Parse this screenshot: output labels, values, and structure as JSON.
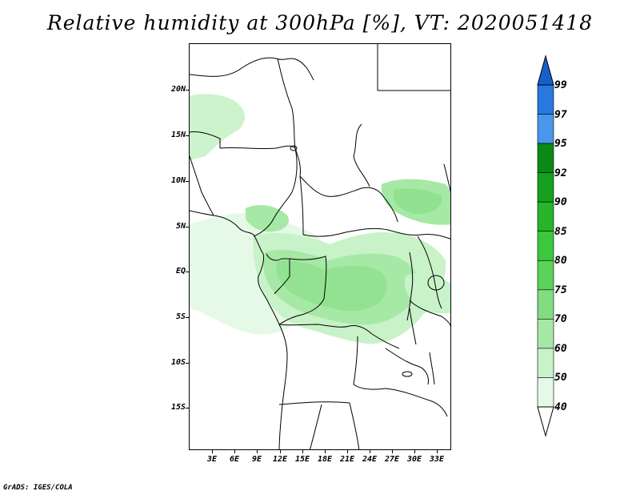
{
  "title": "Relative humidity at 300hPa [%], VT: 2020051418",
  "credit": "GrADS: IGES/COLA",
  "map": {
    "latitude_labels": [
      "20N",
      "15N",
      "10N",
      "5N",
      "EQ",
      "5S",
      "10S",
      "15S"
    ],
    "longitude_labels": [
      "3E",
      "6E",
      "9E",
      "12E",
      "15E",
      "18E",
      "21E",
      "24E",
      "27E",
      "30E",
      "33E"
    ]
  },
  "legend": {
    "labels": [
      "99",
      "97",
      "95",
      "92",
      "90",
      "85",
      "80",
      "75",
      "70",
      "60",
      "50",
      "40"
    ],
    "colors": [
      "#1560cc",
      "#2878e0",
      "#4a96ec",
      "#0a8a14",
      "#14a01e",
      "#28b428",
      "#3cc83c",
      "#5ad25a",
      "#82dc82",
      "#a6e8a6",
      "#c8f2c8",
      "#e6f8e6"
    ]
  },
  "chart_data": {
    "type": "heatmap",
    "title": "Relative humidity at 300hPa [%], VT: 2020051418",
    "variable": "Relative humidity",
    "level": "300hPa",
    "unit": "%",
    "valid_time": "2020051418",
    "x_ticks": [
      "3E",
      "6E",
      "9E",
      "12E",
      "15E",
      "18E",
      "21E",
      "24E",
      "27E",
      "30E",
      "33E"
    ],
    "y_ticks": [
      "20N",
      "15N",
      "10N",
      "5N",
      "EQ",
      "5S",
      "10S",
      "15S"
    ],
    "colorbar_levels": [
      40,
      50,
      60,
      70,
      75,
      80,
      85,
      90,
      92,
      95,
      97,
      99
    ]
  }
}
